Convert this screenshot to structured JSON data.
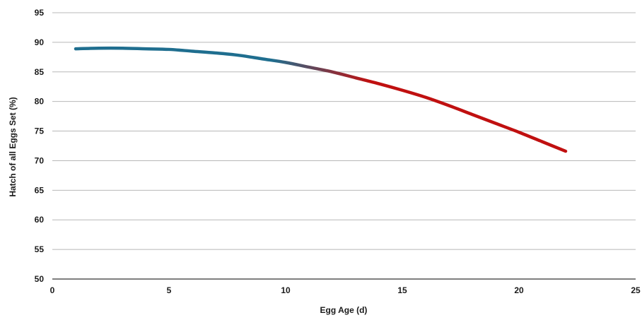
{
  "chart_data": {
    "type": "line",
    "xlabel": "Egg Age (d)",
    "ylabel": "Hatch of all Eggs Set (%)",
    "xlim": [
      0,
      25
    ],
    "ylim": [
      50,
      95
    ],
    "x_ticks": [
      0,
      5,
      10,
      15,
      20,
      25
    ],
    "y_ticks": [
      50,
      55,
      60,
      65,
      70,
      75,
      80,
      85,
      90,
      95
    ],
    "grid": "horizontal",
    "series": [
      {
        "x": [
          1,
          2,
          3,
          4,
          5,
          6,
          7,
          8,
          9,
          10,
          11,
          12,
          13,
          14,
          15,
          16,
          17,
          18,
          19,
          20,
          21,
          22
        ],
        "values": [
          88.9,
          89.0,
          89.0,
          88.9,
          88.8,
          88.5,
          88.2,
          87.8,
          87.2,
          86.6,
          85.8,
          85.0,
          84.0,
          83.0,
          81.9,
          80.7,
          79.3,
          77.8,
          76.3,
          74.8,
          73.2,
          71.6
        ]
      }
    ],
    "colors": {
      "line_start": "#1f6e8f",
      "line_end": "#c01010",
      "grid": "#b8b8b8",
      "axis": "#333333"
    }
  }
}
